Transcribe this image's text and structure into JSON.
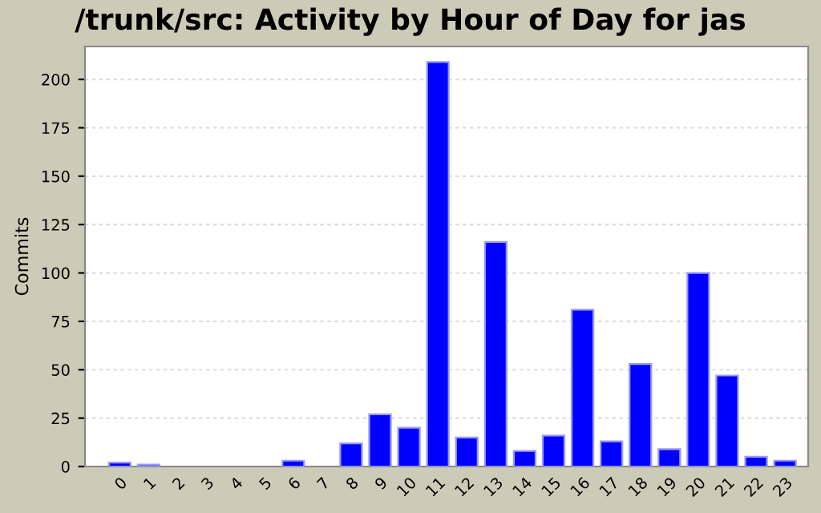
{
  "chart_data": {
    "type": "bar",
    "title": "/trunk/src: Activity by Hour of Day for jas",
    "ylabel": "Commits",
    "categories": [
      "0",
      "1",
      "2",
      "3",
      "4",
      "5",
      "6",
      "7",
      "8",
      "9",
      "10",
      "11",
      "12",
      "13",
      "14",
      "15",
      "16",
      "17",
      "18",
      "19",
      "20",
      "21",
      "22",
      "23"
    ],
    "values": [
      2,
      1,
      0,
      0,
      0,
      0,
      3,
      0,
      12,
      27,
      20,
      209,
      15,
      116,
      8,
      16,
      81,
      13,
      53,
      9,
      100,
      47,
      5,
      3
    ],
    "color": "#0000ff",
    "ylim": [
      0,
      217
    ],
    "yticks": [
      0,
      25,
      50,
      75,
      100,
      125,
      150,
      175,
      200
    ],
    "grid": "y"
  }
}
